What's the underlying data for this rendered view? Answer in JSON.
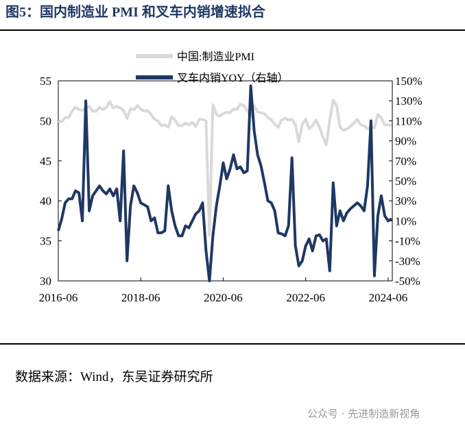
{
  "chart_data": {
    "type": "line",
    "title": "图5：国内制造业 PMI 和叉车内销增速拟合",
    "source": "数据来源：Wind，东吴证券研究所",
    "watermark": "公众号 · 先进制造新视角",
    "x": [
      "2016-06",
      "2016-07",
      "2016-08",
      "2016-09",
      "2016-10",
      "2016-11",
      "2016-12",
      "2017-01",
      "2017-02",
      "2017-03",
      "2017-04",
      "2017-05",
      "2017-06",
      "2017-07",
      "2017-08",
      "2017-09",
      "2017-10",
      "2017-11",
      "2017-12",
      "2018-01",
      "2018-02",
      "2018-03",
      "2018-04",
      "2018-05",
      "2018-06",
      "2018-07",
      "2018-08",
      "2018-09",
      "2018-10",
      "2018-11",
      "2018-12",
      "2019-01",
      "2019-02",
      "2019-03",
      "2019-04",
      "2019-05",
      "2019-06",
      "2019-07",
      "2019-08",
      "2019-09",
      "2019-10",
      "2019-11",
      "2019-12",
      "2020-01",
      "2020-02",
      "2020-03",
      "2020-04",
      "2020-05",
      "2020-06",
      "2020-07",
      "2020-08",
      "2020-09",
      "2020-10",
      "2020-11",
      "2020-12",
      "2021-01",
      "2021-02",
      "2021-03",
      "2021-04",
      "2021-05",
      "2021-06",
      "2021-07",
      "2021-08",
      "2021-09",
      "2021-10",
      "2021-11",
      "2021-12",
      "2022-01",
      "2022-02",
      "2022-03",
      "2022-04",
      "2022-05",
      "2022-06",
      "2022-07",
      "2022-08",
      "2022-09",
      "2022-10",
      "2022-11",
      "2022-12",
      "2023-01",
      "2023-02",
      "2023-03",
      "2023-04",
      "2023-05",
      "2023-06",
      "2023-07",
      "2023-08",
      "2023-09",
      "2023-10",
      "2023-11",
      "2023-12",
      "2024-01",
      "2024-02",
      "2024-03",
      "2024-04",
      "2024-05",
      "2024-06",
      "2024-07"
    ],
    "xticks": [
      "2016-06",
      "2018-06",
      "2020-06",
      "2022-06",
      "2024-06"
    ],
    "ylim": [
      30,
      55
    ],
    "yticks": [
      30,
      35,
      40,
      45,
      50,
      55
    ],
    "y2lim": [
      -50,
      150
    ],
    "y2ticks": [
      {
        "value": -50,
        "label": "-50%"
      },
      {
        "value": -30,
        "label": "-30%"
      },
      {
        "value": -10,
        "label": "-10%"
      },
      {
        "value": 10,
        "label": "10%"
      },
      {
        "value": 30,
        "label": "30%"
      },
      {
        "value": 50,
        "label": "50%"
      },
      {
        "value": 70,
        "label": "70%"
      },
      {
        "value": 90,
        "label": "90%"
      },
      {
        "value": 110,
        "label": "110%"
      },
      {
        "value": 130,
        "label": "130%"
      },
      {
        "value": 150,
        "label": "150%"
      }
    ],
    "series": [
      {
        "name": "中国:制造业PMI",
        "color": "#d9d9d9",
        "values": [
          50.0,
          49.9,
          50.4,
          50.4,
          51.2,
          51.7,
          51.4,
          51.3,
          51.6,
          51.8,
          51.2,
          51.2,
          51.7,
          51.4,
          51.7,
          52.4,
          51.6,
          51.8,
          51.6,
          51.3,
          50.3,
          51.5,
          51.4,
          51.9,
          51.5,
          51.2,
          51.3,
          50.8,
          50.2,
          50.0,
          49.4,
          49.5,
          49.2,
          50.5,
          50.1,
          49.4,
          49.4,
          49.7,
          49.5,
          49.8,
          49.3,
          50.2,
          50.2,
          50.0,
          35.7,
          52.0,
          50.8,
          50.6,
          50.9,
          51.1,
          51.0,
          51.5,
          51.4,
          52.1,
          51.9,
          51.3,
          50.6,
          51.9,
          51.1,
          51.0,
          50.9,
          50.4,
          50.1,
          49.6,
          49.2,
          50.1,
          50.3,
          50.1,
          50.2,
          49.5,
          47.4,
          49.6,
          50.2,
          49.0,
          49.4,
          50.1,
          49.2,
          48.0,
          47.0,
          50.1,
          52.6,
          51.9,
          49.2,
          48.8,
          49.0,
          49.3,
          49.7,
          50.2,
          49.5,
          49.4,
          49.0,
          49.2,
          49.1,
          50.8,
          50.4,
          49.5,
          49.5,
          49.4
        ]
      },
      {
        "name": "叉车内销YOY（右轴）",
        "color": "#1f3864",
        "axis": "y2",
        "values": [
          0,
          12,
          28,
          32,
          32,
          40,
          38,
          10,
          130,
          20,
          35,
          40,
          45,
          40,
          37,
          42,
          35,
          42,
          10,
          80,
          -30,
          25,
          45,
          38,
          28,
          26,
          24,
          10,
          13,
          -2,
          -2,
          0,
          45,
          20,
          5,
          -5,
          -5,
          5,
          3,
          10,
          17,
          20,
          28,
          -20,
          -50,
          -5,
          25,
          45,
          68,
          52,
          62,
          76,
          62,
          64,
          58,
          60,
          145,
          100,
          76,
          65,
          48,
          30,
          28,
          20,
          -2,
          -3,
          -5,
          5,
          73,
          -15,
          -35,
          -30,
          -15,
          -8,
          -20,
          -5,
          -4,
          -10,
          -8,
          -40,
          48,
          5,
          20,
          10,
          18,
          22,
          25,
          28,
          25,
          20,
          45,
          110,
          -45,
          15,
          35,
          15,
          10,
          12
        ]
      }
    ]
  }
}
